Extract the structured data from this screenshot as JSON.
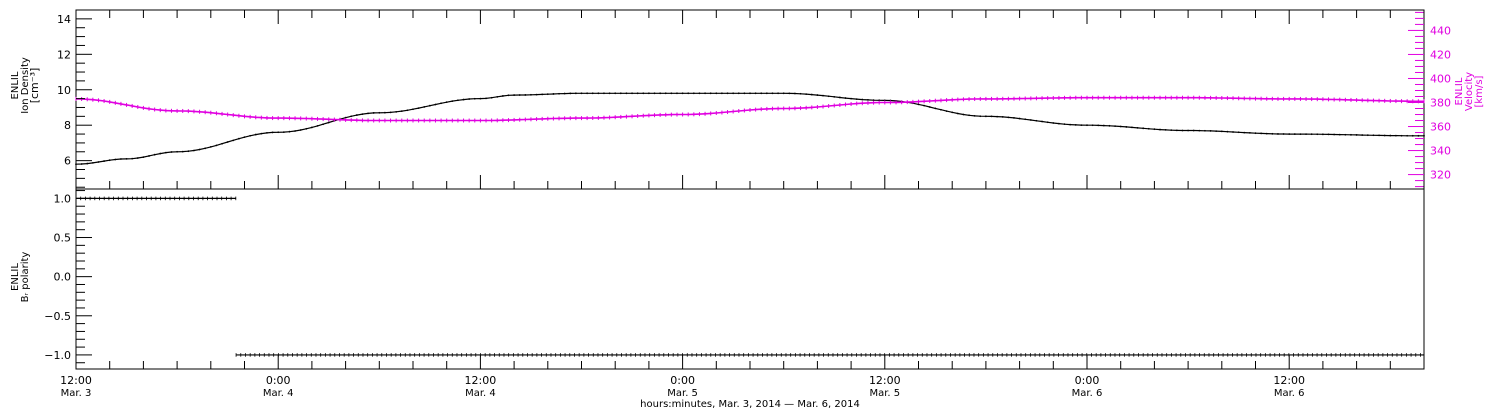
{
  "chart_data": [
    {
      "type": "line",
      "panel": "top",
      "left_axis": {
        "label_lines": [
          "ENLIL",
          "Ion Density",
          "[cm⁻³]"
        ],
        "ylim": [
          4.4,
          14.5
        ],
        "ticks": [
          6,
          8,
          10,
          12,
          14
        ],
        "tick_labels": [
          "6",
          "8",
          "10",
          "12",
          "14"
        ]
      },
      "right_axis": {
        "label_lines": [
          "ENLIL",
          "Velocity",
          "[km/s]"
        ],
        "ylim": [
          308,
          457
        ],
        "ticks": [
          320,
          340,
          360,
          380,
          400,
          420,
          440
        ],
        "tick_labels": [
          "320",
          "340",
          "360",
          "380",
          "400",
          "420",
          "440"
        ],
        "color": "#e000e0"
      },
      "grid": false,
      "series": [
        {
          "name": "Ion Density",
          "axis": "left",
          "color": "#000000",
          "x": [
            "2014-03-03T12:00",
            "2014-03-03T15:00",
            "2014-03-03T18:00",
            "2014-03-04T00:00",
            "2014-03-04T06:00",
            "2014-03-04T12:00",
            "2014-03-04T14:00",
            "2014-03-04T18:00",
            "2014-03-05T00:00",
            "2014-03-05T06:00",
            "2014-03-05T12:00",
            "2014-03-05T18:00",
            "2014-03-06T00:00",
            "2014-03-06T06:00",
            "2014-03-06T12:00",
            "2014-03-06T20:00"
          ],
          "y": [
            5.8,
            6.1,
            6.5,
            7.6,
            8.7,
            9.5,
            9.7,
            9.8,
            9.8,
            9.8,
            9.4,
            8.5,
            8.0,
            7.7,
            7.5,
            7.4
          ]
        },
        {
          "name": "Velocity",
          "axis": "right",
          "color": "#e000e0",
          "x": [
            "2014-03-03T12:00",
            "2014-03-03T18:00",
            "2014-03-04T00:00",
            "2014-03-04T06:00",
            "2014-03-04T12:00",
            "2014-03-04T18:00",
            "2014-03-05T00:00",
            "2014-03-05T06:00",
            "2014-03-05T12:00",
            "2014-03-05T18:00",
            "2014-03-06T00:00",
            "2014-03-06T06:00",
            "2014-03-06T12:00",
            "2014-03-06T20:00"
          ],
          "y": [
            383,
            373,
            367,
            365,
            365,
            367,
            370,
            375,
            380,
            383,
            384,
            384,
            383,
            381
          ]
        }
      ]
    },
    {
      "type": "scatter",
      "panel": "bottom",
      "left_axis": {
        "label_lines": [
          "ENLIL",
          "Bᵣ polarity"
        ],
        "ylim": [
          -1.18,
          1.12
        ],
        "ticks": [
          -1.0,
          -0.5,
          0.0,
          0.5,
          1.0
        ],
        "tick_labels": [
          "−1.0",
          "−0.5",
          "0.0",
          "0.5",
          "1.0"
        ]
      },
      "grid": false,
      "series": [
        {
          "color": "#000000",
          "segments": [
            {
              "x_start": "2014-03-03T12:00",
              "x_end": "2014-03-03T21:30",
              "y": 1.0
            },
            {
              "x_start": "2014-03-03T21:30",
              "x_end": "2014-03-06T20:00",
              "y": -1.0
            }
          ]
        }
      ]
    }
  ],
  "x_axis": {
    "range": [
      "2014-03-03T12:00",
      "2014-03-06T20:00"
    ],
    "major_ticks": [
      {
        "t": "2014-03-03T12:00",
        "time": "12:00",
        "date": "Mar. 3"
      },
      {
        "t": "2014-03-04T00:00",
        "time": "0:00",
        "date": "Mar. 4"
      },
      {
        "t": "2014-03-04T12:00",
        "time": "12:00",
        "date": "Mar. 4"
      },
      {
        "t": "2014-03-05T00:00",
        "time": "0:00",
        "date": "Mar. 5"
      },
      {
        "t": "2014-03-05T12:00",
        "time": "12:00",
        "date": "Mar. 5"
      },
      {
        "t": "2014-03-06T00:00",
        "time": "0:00",
        "date": "Mar. 6"
      },
      {
        "t": "2014-03-06T12:00",
        "time": "12:00",
        "date": "Mar. 6"
      }
    ],
    "minor_tick_hours": 2,
    "title": "hours:minutes, Mar.  3, 2014 — Mar.  6, 2014"
  }
}
